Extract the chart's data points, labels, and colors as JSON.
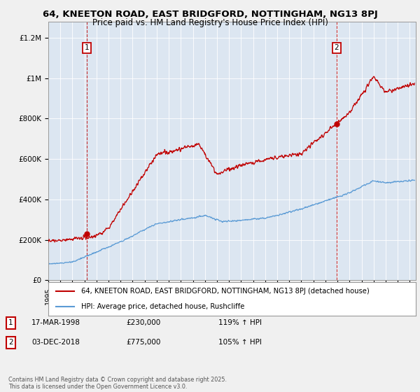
{
  "title_line1": "64, KNEETON ROAD, EAST BRIDGFORD, NOTTINGHAM, NG13 8PJ",
  "title_line2": "Price paid vs. HM Land Registry's House Price Index (HPI)",
  "ylabel_ticks": [
    "£0",
    "£200K",
    "£400K",
    "£600K",
    "£800K",
    "£1M",
    "£1.2M"
  ],
  "ytick_values": [
    0,
    200000,
    400000,
    600000,
    800000,
    1000000,
    1200000
  ],
  "ylim": [
    0,
    1280000
  ],
  "xlim_start": 1995.0,
  "xlim_end": 2025.5,
  "hpi_color": "#5b9bd5",
  "price_color": "#c00000",
  "marker1_x": 1998.21,
  "marker1_y": 230000,
  "marker1_label": "1",
  "marker2_x": 2018.92,
  "marker2_y": 775000,
  "marker2_label": "2",
  "legend_line1": "64, KNEETON ROAD, EAST BRIDGFORD, NOTTINGHAM, NG13 8PJ (detached house)",
  "legend_line2": "HPI: Average price, detached house, Rushcliffe",
  "annotation1_num": "1",
  "annotation1_date": "17-MAR-1998",
  "annotation1_price": "£230,000",
  "annotation1_hpi": "119% ↑ HPI",
  "annotation2_num": "2",
  "annotation2_date": "03-DEC-2018",
  "annotation2_price": "£775,000",
  "annotation2_hpi": "105% ↑ HPI",
  "footnote": "Contains HM Land Registry data © Crown copyright and database right 2025.\nThis data is licensed under the Open Government Licence v3.0.",
  "bg_color": "#f0f0f0",
  "plot_bg_color": "#dce6f1",
  "grid_color": "#ffffff"
}
